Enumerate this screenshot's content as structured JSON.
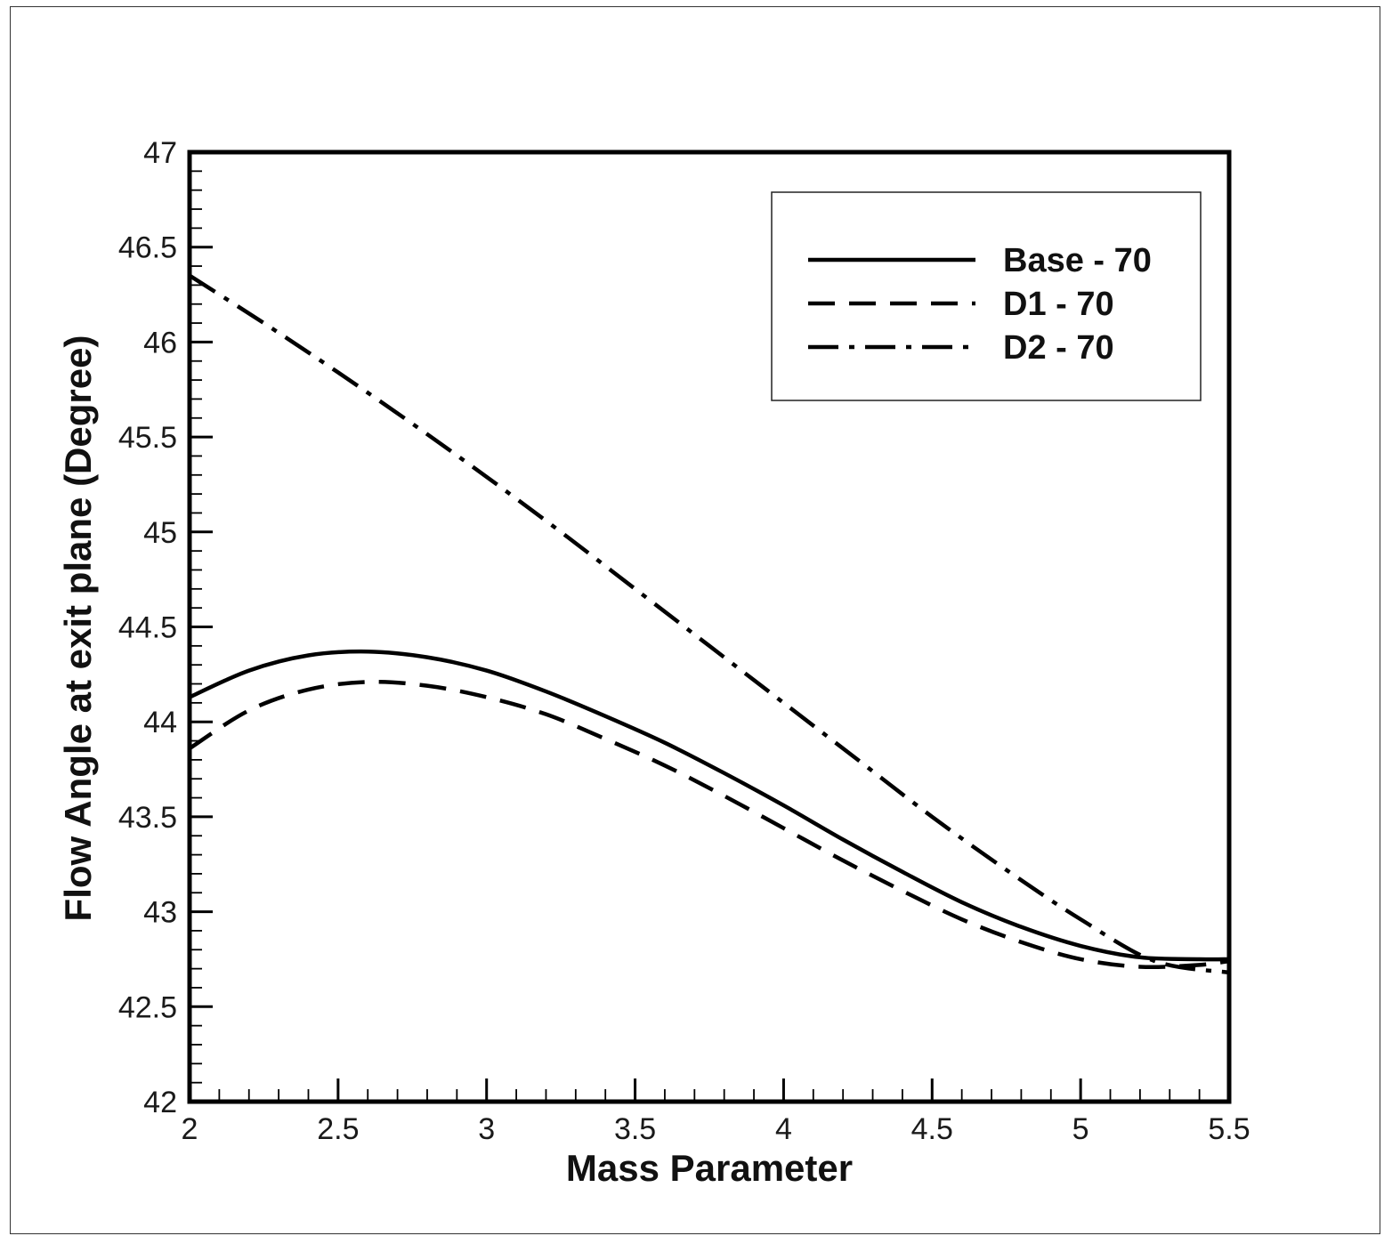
{
  "chart_data": {
    "type": "line",
    "title": "",
    "xlabel": "Mass Parameter",
    "ylabel": "Flow Angle at exit plane (Degree)",
    "xlim": [
      2,
      5.5
    ],
    "ylim": [
      42,
      47
    ],
    "x_ticks": [
      "2",
      "2.5",
      "3",
      "3.5",
      "4",
      "4.5",
      "5",
      "5.5"
    ],
    "y_ticks": [
      "42",
      "42.5",
      "43",
      "43.5",
      "44",
      "44.5",
      "45",
      "45.5",
      "46",
      "46.5",
      "47"
    ],
    "grid": false,
    "legend_position": "top-right",
    "series": [
      {
        "name": "Base - 70",
        "style": "solid",
        "color": "#000000",
        "x": [
          2.0,
          2.2,
          2.4,
          2.6,
          2.8,
          3.0,
          3.2,
          3.4,
          3.6,
          3.8,
          4.0,
          4.2,
          4.4,
          4.6,
          4.8,
          5.0,
          5.2,
          5.4,
          5.5
        ],
        "y": [
          44.13,
          44.27,
          44.35,
          44.37,
          44.34,
          44.27,
          44.16,
          44.03,
          43.89,
          43.73,
          43.56,
          43.38,
          43.21,
          43.05,
          42.92,
          42.82,
          42.76,
          42.75,
          42.75
        ]
      },
      {
        "name": "D1 - 70",
        "style": "dashed",
        "color": "#000000",
        "x": [
          2.0,
          2.2,
          2.4,
          2.6,
          2.8,
          3.0,
          3.2,
          3.4,
          3.6,
          3.8,
          4.0,
          4.2,
          4.4,
          4.6,
          4.8,
          5.0,
          5.2,
          5.4,
          5.5
        ],
        "y": [
          43.86,
          44.06,
          44.17,
          44.21,
          44.19,
          44.13,
          44.04,
          43.91,
          43.77,
          43.61,
          43.44,
          43.27,
          43.11,
          42.96,
          42.84,
          42.75,
          42.71,
          42.72,
          42.74
        ]
      },
      {
        "name": "D2 - 70",
        "style": "dash-dot",
        "color": "#000000",
        "x": [
          2.0,
          2.25,
          2.5,
          2.75,
          3.0,
          3.25,
          3.5,
          3.75,
          4.0,
          4.25,
          4.5,
          4.75,
          5.0,
          5.25,
          5.5
        ],
        "y": [
          46.35,
          46.1,
          45.84,
          45.57,
          45.29,
          45.0,
          44.7,
          44.4,
          44.1,
          43.8,
          43.5,
          43.22,
          42.96,
          42.74,
          42.68
        ]
      }
    ]
  }
}
